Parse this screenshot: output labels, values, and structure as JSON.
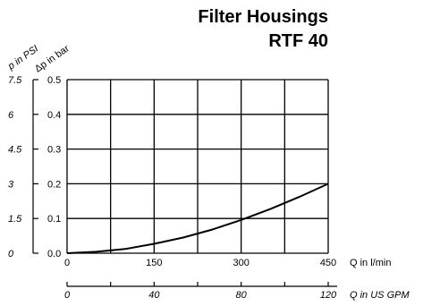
{
  "chart_data": {
    "type": "line",
    "title": "Filter Housings",
    "subtitle": "RTF 40",
    "xlabel": "Q in l/min",
    "xlabel_secondary": "Q in US GPM",
    "ylabel": "Δp in bar",
    "ylabel_secondary": "p in PSI",
    "xlim": [
      0,
      450
    ],
    "ylim": [
      0,
      0.5
    ],
    "xlim_secondary": [
      0,
      120
    ],
    "ylim_secondary": [
      0,
      7.5
    ],
    "x_ticks": [
      "0",
      "150",
      "300",
      "450"
    ],
    "x_ticks_secondary": [
      "0",
      "40",
      "80",
      "120"
    ],
    "y_ticks": [
      "0.0",
      "0.1",
      "0.2",
      "0.3",
      "0.4",
      "0.5"
    ],
    "y_ticks_secondary": [
      "0",
      "1.5",
      "3",
      "4.5",
      "6",
      "7.5"
    ],
    "grid": true,
    "series": [
      {
        "x": [
          0,
          50,
          100,
          150,
          200,
          250,
          300,
          350,
          400,
          450
        ],
        "values": [
          0.0,
          0.004,
          0.012,
          0.027,
          0.045,
          0.068,
          0.096,
          0.127,
          0.162,
          0.2
        ]
      }
    ]
  }
}
